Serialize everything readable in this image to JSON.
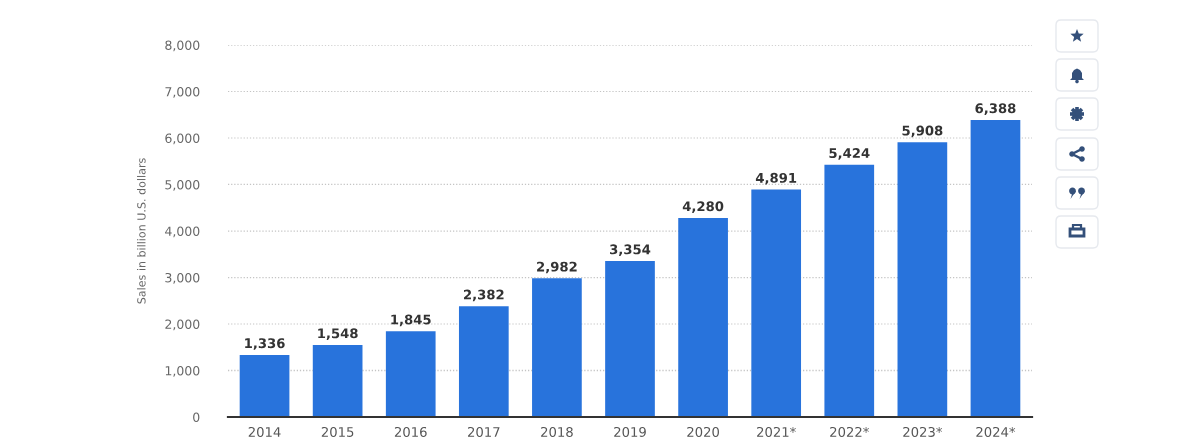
{
  "chart_data": {
    "type": "bar",
    "ylabel": "Sales in billion U.S. dollars",
    "categories": [
      "2014",
      "2015",
      "2016",
      "2017",
      "2018",
      "2019",
      "2020",
      "2021*",
      "2022*",
      "2023*",
      "2024*"
    ],
    "values": [
      1336,
      1548,
      1845,
      2382,
      2982,
      3354,
      4280,
      4891,
      5424,
      5908,
      6388
    ],
    "value_labels": [
      "1,336",
      "1,548",
      "1,845",
      "2,382",
      "2,982",
      "3,354",
      "4,280",
      "4,891",
      "5,424",
      "5,908",
      "6,388"
    ],
    "color": "#2873dc",
    "ylim": [
      0,
      8000
    ],
    "yticks": [
      0,
      {
        "value": 1000,
        "label": "1,000"
      },
      {
        "value": 2000,
        "label": "2,000"
      },
      {
        "value": 3000,
        "label": "3,000"
      },
      {
        "value": 4000,
        "label": "4,000"
      },
      {
        "value": 5000,
        "label": "5,000"
      },
      {
        "value": 6000,
        "label": "6,000"
      },
      {
        "value": 7000,
        "label": "7,000"
      },
      {
        "value": 8000,
        "label": "8,000"
      }
    ],
    "grid": "y"
  }
}
